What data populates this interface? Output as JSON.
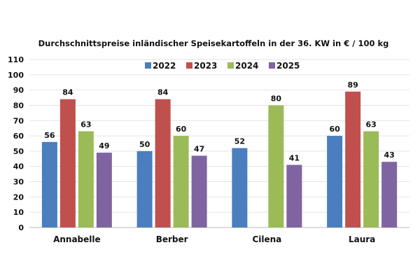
{
  "chart_data": {
    "type": "bar",
    "title": "Durchschnittspreise inländischer Speisekartoffeln in der 36. KW in € / 100 kg",
    "xlabel": "",
    "ylabel": "",
    "ylim": [
      0,
      110
    ],
    "yticks": [
      0,
      10,
      20,
      30,
      40,
      50,
      60,
      70,
      80,
      90,
      100,
      110
    ],
    "grid": true,
    "legend_position": "top-center",
    "categories": [
      "Annabelle",
      "Berber",
      "Cilena",
      "Laura"
    ],
    "series": [
      {
        "name": "2022",
        "color": "#4a7ebf",
        "values": [
          56,
          50,
          52,
          60
        ]
      },
      {
        "name": "2023",
        "color": "#c0504d",
        "values": [
          84,
          84,
          null,
          89
        ]
      },
      {
        "name": "2024",
        "color": "#9bbb59",
        "values": [
          63,
          60,
          80,
          63
        ]
      },
      {
        "name": "2025",
        "color": "#8064a2",
        "values": [
          49,
          47,
          41,
          43
        ]
      }
    ]
  }
}
